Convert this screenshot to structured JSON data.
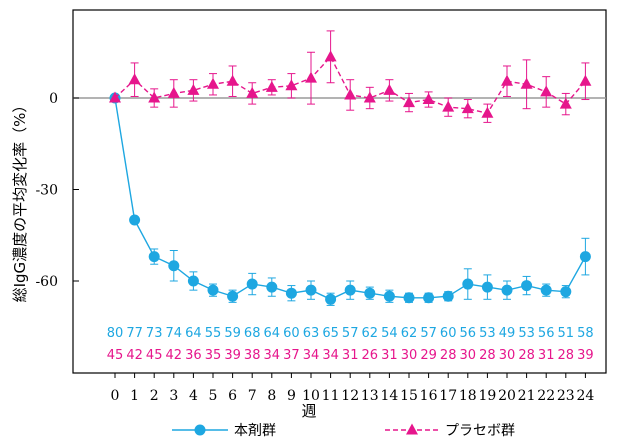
{
  "chart_data": {
    "type": "line",
    "ylabel": "総IgG濃度の平均変化率（%）",
    "xlabel": "週",
    "x": [
      0,
      1,
      2,
      3,
      4,
      5,
      6,
      7,
      8,
      9,
      10,
      11,
      12,
      13,
      14,
      15,
      16,
      17,
      18,
      19,
      20,
      21,
      22,
      23,
      24
    ],
    "x_tick_labels": [
      "0",
      "1",
      "2",
      "3",
      "4",
      "5",
      "6",
      "7",
      "8",
      "9",
      "10",
      "11",
      "12",
      "13",
      "14",
      "15",
      "16",
      "17",
      "18",
      "19",
      "20",
      "21",
      "22",
      "23",
      "24"
    ],
    "y_ticks": [
      0,
      -30,
      -60
    ],
    "y_tick_labels": [
      "0",
      "-30",
      "-60"
    ],
    "ylim": [
      -90,
      28
    ],
    "reference_line": 0,
    "series": [
      {
        "name": "本剤群",
        "color": "#1ea7e1",
        "marker": "circle",
        "line": "solid",
        "values": [
          0,
          -40,
          -52,
          -55,
          -60,
          -63,
          -65,
          -61,
          -62,
          -64,
          -63,
          -66,
          -63,
          -64,
          -65,
          -65.5,
          -65.5,
          -65,
          -61,
          -62,
          -63,
          -61.5,
          -63,
          -63.5,
          -52
        ],
        "err": [
          0,
          0,
          2.5,
          5,
          3,
          2,
          2,
          3.5,
          3,
          2.5,
          3,
          2,
          3,
          2,
          2,
          1.5,
          1.5,
          1.5,
          5,
          4,
          3,
          3,
          2,
          2,
          6
        ]
      },
      {
        "name": "プラセボ群",
        "color": "#e6168c",
        "marker": "triangle",
        "line": "dashed",
        "values": [
          0,
          6,
          0,
          1.5,
          2.5,
          4.5,
          5.5,
          1.5,
          3.5,
          4,
          6.5,
          13.5,
          1,
          0,
          2.5,
          -1.5,
          -0.5,
          -3,
          -3.5,
          -5,
          5.5,
          4.5,
          2,
          -2,
          5.5
        ],
        "err": [
          0,
          5.5,
          3,
          4.5,
          3.5,
          3.5,
          5,
          3.5,
          2.5,
          4,
          8.5,
          8.5,
          5,
          3.5,
          3.5,
          3,
          2.5,
          3,
          3,
          3,
          5,
          8,
          5,
          3.5,
          6
        ]
      }
    ],
    "n_rows": [
      {
        "color": "#1ea7e1",
        "counts": [
          "80",
          "77",
          "73",
          "74",
          "64",
          "55",
          "59",
          "68",
          "64",
          "60",
          "63",
          "65",
          "57",
          "62",
          "54",
          "62",
          "57",
          "60",
          "56",
          "53",
          "49",
          "53",
          "56",
          "51",
          "58"
        ]
      },
      {
        "color": "#e6168c",
        "counts": [
          "45",
          "42",
          "45",
          "42",
          "36",
          "35",
          "39",
          "38",
          "34",
          "37",
          "34",
          "34",
          "31",
          "26",
          "31",
          "30",
          "29",
          "28",
          "30",
          "28",
          "30",
          "28",
          "31",
          "28",
          "39"
        ]
      }
    ],
    "legend_position": "bottom",
    "grid": false
  }
}
